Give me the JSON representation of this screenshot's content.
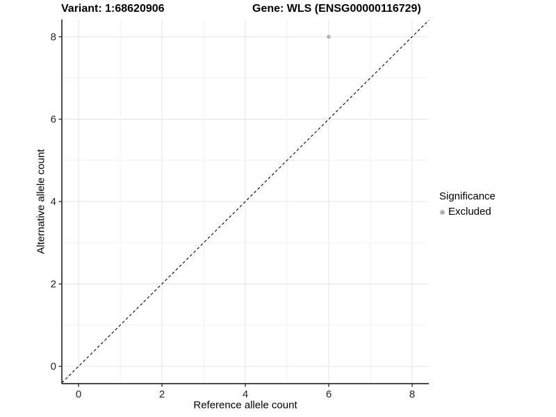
{
  "chart_data": {
    "type": "scatter",
    "title_left": "Variant: 1:68620906",
    "title_right": "Gene: WLS (ENSG00000116729)",
    "xlabel": "Reference allele count",
    "ylabel": "Alternative allele count",
    "xlim": [
      -0.4,
      8.4
    ],
    "ylim": [
      -0.42,
      8.42
    ],
    "x_ticks": [
      0,
      2,
      4,
      6,
      8
    ],
    "y_ticks": [
      0,
      2,
      4,
      6,
      8
    ],
    "x_minor_ticks": [
      1,
      3,
      5,
      7
    ],
    "y_minor_ticks": [
      1,
      3,
      5,
      7
    ],
    "grid": true,
    "identity_line": {
      "style": "dashed",
      "color": "#000000",
      "slope": 1,
      "intercept": 0
    },
    "series": [
      {
        "name": "Excluded",
        "color": "#b1b1b1",
        "points": [
          {
            "x": 6,
            "y": 8
          }
        ]
      }
    ],
    "legend": {
      "title": "Significance",
      "position": "right",
      "items": [
        {
          "label": "Excluded",
          "color": "#b1b1b1"
        }
      ]
    }
  },
  "colors": {
    "background": "#ffffff",
    "grid_major": "#e4e4e4",
    "grid_minor": "#f0f0f0",
    "axis_line": "#2f2f2f",
    "tick_mark": "#2f2f2f",
    "tick_label": "#262626",
    "point": "#b1b1b1"
  }
}
